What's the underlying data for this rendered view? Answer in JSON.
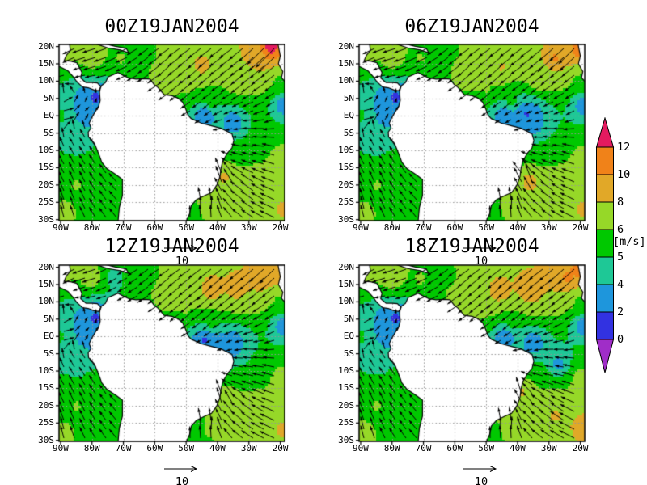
{
  "figure": {
    "background": "#FFFFFF"
  },
  "chart_data": {
    "type": "heatmap-quiver-map",
    "description": "2x2 grid of wind vector maps over South America and tropical Atlantic, wind speed shaded in m/s",
    "reference_vector": {
      "label": "10",
      "value": 10
    },
    "panels": [
      {
        "id": "00z",
        "title": "00Z19JAN2004",
        "wind_controls": [
          [
            -88,
            18.5,
            -5.5,
            -3
          ],
          [
            -80,
            17,
            -6.5,
            -2
          ],
          [
            -71,
            16.5,
            -5.5,
            -2.5
          ],
          [
            -62,
            17.5,
            -4.5,
            -3.5
          ],
          [
            -55,
            13.5,
            -5.5,
            -5
          ],
          [
            -45,
            14.5,
            -6.5,
            -6
          ],
          [
            -33,
            11,
            -5.5,
            -4.5
          ],
          [
            -27,
            17.5,
            -7,
            -6.5
          ],
          [
            -23,
            19.6,
            -9,
            -9.5
          ],
          [
            -20,
            10,
            -4.5,
            -3.5
          ],
          [
            -19,
            3,
            -2.5,
            -2
          ],
          [
            -50,
            7.5,
            -4.5,
            -4
          ],
          [
            -42,
            4,
            -4,
            -3.5
          ],
          [
            -44,
            0,
            -2,
            -1.5
          ],
          [
            -35,
            -2,
            -2.5,
            -1
          ],
          [
            -28,
            -6,
            -5,
            0.5
          ],
          [
            -20,
            -12,
            -6,
            2
          ],
          [
            -33,
            -12,
            -5.5,
            1.5
          ],
          [
            -42,
            -10,
            -4,
            2
          ],
          [
            -38,
            -18,
            -2.5,
            8
          ],
          [
            -30,
            -22,
            -6,
            4.5
          ],
          [
            -19,
            -27,
            -7.5,
            3.5
          ],
          [
            -43,
            -27,
            0.5,
            6
          ],
          [
            -53,
            -30,
            1.5,
            5
          ],
          [
            -90,
            0,
            5,
            1
          ],
          [
            -81,
            1,
            2,
            1.5
          ],
          [
            -79,
            5,
            0.5,
            1.5
          ],
          [
            -84,
            -7,
            -2.5,
            4
          ],
          [
            -78,
            -13,
            -3,
            4.5
          ],
          [
            -85,
            -20,
            -2.5,
            5.5
          ],
          [
            -89,
            -28,
            -1.5,
            6
          ]
        ]
      },
      {
        "id": "06z",
        "title": "06Z19JAN2004",
        "wind_controls": [
          [
            -88,
            18.5,
            -5.5,
            -3
          ],
          [
            -80,
            17,
            -6.5,
            -2
          ],
          [
            -71,
            16.5,
            -5.5,
            -2.5
          ],
          [
            -62,
            17.5,
            -4.5,
            -3.5
          ],
          [
            -55,
            13.5,
            -5.5,
            -5
          ],
          [
            -45,
            14,
            -6,
            -5.5
          ],
          [
            -33,
            11,
            -5.5,
            -4.5
          ],
          [
            -28,
            16.5,
            -7.5,
            -7
          ],
          [
            -21,
            19,
            -7.5,
            -7.5
          ],
          [
            -20,
            10,
            -4.5,
            -3.5
          ],
          [
            -19,
            3,
            -2.5,
            -2
          ],
          [
            -50,
            7.5,
            -4.5,
            -4
          ],
          [
            -42,
            4,
            -4,
            -3.5
          ],
          [
            -44,
            0,
            -2,
            -1.5
          ],
          [
            -37,
            0.5,
            -1.5,
            -1
          ],
          [
            -35,
            -2,
            -2.5,
            -1
          ],
          [
            -28,
            -6,
            -5,
            0.5
          ],
          [
            -20,
            -12,
            -6,
            2
          ],
          [
            -33,
            -12,
            -5.5,
            1.5
          ],
          [
            -42,
            -10,
            -4,
            2
          ],
          [
            -36,
            -19,
            -3,
            8.5
          ],
          [
            -30,
            -22,
            -6,
            4.5
          ],
          [
            -19,
            -27,
            -7.5,
            3.5
          ],
          [
            -43,
            -27,
            0.5,
            6
          ],
          [
            -53,
            -30,
            1.5,
            5
          ],
          [
            -90,
            0,
            5,
            1
          ],
          [
            -81,
            1,
            2,
            1.5
          ],
          [
            -79,
            5,
            0.5,
            1.5
          ],
          [
            -84,
            -7,
            -2.5,
            4
          ],
          [
            -78,
            -13,
            -3,
            4.5
          ],
          [
            -85,
            -20,
            -2.5,
            5.5
          ],
          [
            -89,
            -28,
            -1.5,
            6
          ]
        ]
      },
      {
        "id": "12z",
        "title": "12Z19JAN2004",
        "wind_controls": [
          [
            -88,
            18.5,
            -5.5,
            -3
          ],
          [
            -80,
            17,
            -6.5,
            -2
          ],
          [
            -73,
            17,
            -4,
            -2.5
          ],
          [
            -62,
            17.5,
            -4.5,
            -3.5
          ],
          [
            -55,
            13.5,
            -5.5,
            -5
          ],
          [
            -42,
            13.5,
            -7,
            -6.5
          ],
          [
            -34,
            14,
            -7,
            -6
          ],
          [
            -26,
            17,
            -7,
            -6.5
          ],
          [
            -21,
            19,
            -7,
            -7
          ],
          [
            -20,
            10,
            -4.5,
            -3.5
          ],
          [
            -19,
            3,
            -2.5,
            -2
          ],
          [
            -50,
            7.5,
            -4.5,
            -4
          ],
          [
            -42,
            4,
            -4,
            -3.5
          ],
          [
            -44,
            -1,
            -1.5,
            -1
          ],
          [
            -38,
            -4,
            -2,
            -0.5
          ],
          [
            -35,
            -2,
            -2.5,
            -1
          ],
          [
            -28,
            -6,
            -5,
            0.5
          ],
          [
            -20,
            -12,
            -6,
            2
          ],
          [
            -33,
            -12,
            -5.5,
            1.5
          ],
          [
            -42,
            -10,
            -4,
            2
          ],
          [
            -38,
            -18,
            -2,
            7.5
          ],
          [
            -30,
            -22,
            -6,
            4.5
          ],
          [
            -19,
            -27,
            -7.5,
            3.5
          ],
          [
            -43,
            -27,
            0.5,
            6
          ],
          [
            -53,
            -30,
            1.5,
            5
          ],
          [
            -90,
            0,
            5,
            1
          ],
          [
            -81,
            1,
            2,
            1.5
          ],
          [
            -79,
            5,
            0.5,
            1.5
          ],
          [
            -84,
            -7,
            -2.5,
            4
          ],
          [
            -78,
            -13,
            -3,
            4.5
          ],
          [
            -85,
            -20,
            -2.5,
            5.5
          ],
          [
            -89,
            -28,
            -1.5,
            6
          ]
        ]
      },
      {
        "id": "18z",
        "title": "18Z19JAN2004",
        "wind_controls": [
          [
            -88,
            18.5,
            -5.5,
            -3
          ],
          [
            -80,
            17,
            -6.5,
            -2
          ],
          [
            -71,
            16.5,
            -5.5,
            -2.5
          ],
          [
            -62,
            17.5,
            -4.5,
            -3.5
          ],
          [
            -55,
            13.5,
            -5.5,
            -5
          ],
          [
            -46,
            13,
            -7,
            -6.5
          ],
          [
            -36,
            13.5,
            -7.5,
            -6.5
          ],
          [
            -24,
            17,
            -7.5,
            -7
          ],
          [
            -20,
            19.5,
            -8,
            -7.5
          ],
          [
            -20,
            10,
            -4.5,
            -3.5
          ],
          [
            -19,
            3,
            -2.5,
            -2
          ],
          [
            -50,
            7.5,
            -4.5,
            -4
          ],
          [
            -42,
            4,
            -4,
            -3.5
          ],
          [
            -44,
            0,
            -2,
            -1.5
          ],
          [
            -35,
            -2,
            -2.5,
            -1
          ],
          [
            -27,
            -8,
            -3.5,
            0.5
          ],
          [
            -20,
            -12,
            -6,
            2
          ],
          [
            -33,
            -12,
            -5.5,
            1.5
          ],
          [
            -42,
            -10,
            -4,
            2
          ],
          [
            -39,
            -16,
            -2.5,
            8
          ],
          [
            -28,
            -23,
            -6.5,
            5
          ],
          [
            -19,
            -26,
            -8,
            4
          ],
          [
            -43,
            -27,
            0.5,
            6
          ],
          [
            -53,
            -30,
            1.5,
            5
          ],
          [
            -90,
            0,
            5,
            1
          ],
          [
            -81,
            1,
            2,
            1.5
          ],
          [
            -79,
            5,
            0.5,
            1.5
          ],
          [
            -84,
            -7,
            -2.5,
            4
          ],
          [
            -78,
            -13,
            -3,
            4.5
          ],
          [
            -85,
            -20,
            -2.5,
            5.5
          ],
          [
            -89,
            -28,
            -1.5,
            6
          ]
        ]
      }
    ],
    "axes": {
      "lat_ticks": [
        {
          "label": "20N",
          "deg": 20
        },
        {
          "label": "15N",
          "deg": 15
        },
        {
          "label": "10N",
          "deg": 10
        },
        {
          "label": "5N",
          "deg": 5
        },
        {
          "label": "EQ",
          "deg": 0
        },
        {
          "label": "5S",
          "deg": -5
        },
        {
          "label": "10S",
          "deg": -10
        },
        {
          "label": "15S",
          "deg": -15
        },
        {
          "label": "20S",
          "deg": -20
        },
        {
          "label": "25S",
          "deg": -25
        },
        {
          "label": "30S",
          "deg": -30
        }
      ],
      "lon_ticks": [
        {
          "label": "90W",
          "deg": -90
        },
        {
          "label": "80W",
          "deg": -80
        },
        {
          "label": "70W",
          "deg": -70
        },
        {
          "label": "60W",
          "deg": -60
        },
        {
          "label": "50W",
          "deg": -50
        },
        {
          "label": "40W",
          "deg": -40
        },
        {
          "label": "30W",
          "deg": -30
        },
        {
          "label": "20W",
          "deg": -20
        }
      ],
      "lon_range": [
        -90.5,
        -18.6
      ],
      "lat_range": [
        -30.3,
        20.6
      ],
      "grid": "dotted"
    },
    "colorbar": {
      "unit": "[m/s]",
      "levels": [
        0,
        2,
        4,
        5,
        6,
        8,
        10,
        12
      ],
      "labels": [
        "12",
        "10",
        "8",
        "6",
        "5",
        "4",
        "2",
        "0"
      ],
      "segment_colors_top_to_bottom": [
        "#F08219",
        "#E1A828",
        "#96D828",
        "#00C800",
        "#1EC896",
        "#1E96DC",
        "#3232E1"
      ],
      "over_color": "#E41A5F",
      "under_color": "#A02DC8"
    },
    "land_polygons": {
      "south_america": [
        [
          -77.2,
          8.6
        ],
        [
          -75.7,
          9.6
        ],
        [
          -74.9,
          11.2
        ],
        [
          -71.7,
          12.5
        ],
        [
          -70.1,
          11.7
        ],
        [
          -68.3,
          10.9
        ],
        [
          -66,
          10.6
        ],
        [
          -63.5,
          10.7
        ],
        [
          -61.5,
          10.6
        ],
        [
          -60.2,
          9.0
        ],
        [
          -59.0,
          8.2
        ],
        [
          -57.0,
          6.1
        ],
        [
          -54.5,
          5.8
        ],
        [
          -52.6,
          5.1
        ],
        [
          -51.1,
          3.9
        ],
        [
          -50.1,
          1.9
        ],
        [
          -49.4,
          0.2
        ],
        [
          -48.4,
          -0.8
        ],
        [
          -45.2,
          -2.1
        ],
        [
          -41.9,
          -2.9
        ],
        [
          -38.9,
          -3.6
        ],
        [
          -35.4,
          -5.2
        ],
        [
          -34.8,
          -7.1
        ],
        [
          -35.4,
          -9.3
        ],
        [
          -36.8,
          -10.7
        ],
        [
          -38.3,
          -13.0
        ],
        [
          -38.9,
          -15.2
        ],
        [
          -39.2,
          -17.5
        ],
        [
          -40.2,
          -20.0
        ],
        [
          -41.9,
          -22.2
        ],
        [
          -44.0,
          -23.0
        ],
        [
          -46.7,
          -24.2
        ],
        [
          -48.3,
          -25.8
        ],
        [
          -48.9,
          -28.3
        ],
        [
          -50.5,
          -31.5
        ],
        [
          -71.8,
          -31.5
        ],
        [
          -71.3,
          -26.5
        ],
        [
          -70.3,
          -23.0
        ],
        [
          -70.3,
          -18.4
        ],
        [
          -72.2,
          -17.1
        ],
        [
          -75.2,
          -15.3
        ],
        [
          -76.9,
          -13.4
        ],
        [
          -77.7,
          -11.4
        ],
        [
          -79.2,
          -8.0
        ],
        [
          -81.1,
          -6.1
        ],
        [
          -81.2,
          -4.7
        ],
        [
          -80.3,
          -3.5
        ],
        [
          -80.9,
          -2.1
        ],
        [
          -80.1,
          -0.6
        ],
        [
          -78.9,
          1.3
        ],
        [
          -77.9,
          2.7
        ],
        [
          -77.4,
          4.4
        ],
        [
          -77.6,
          6.8
        ]
      ],
      "central_america": [
        [
          -91,
          21
        ],
        [
          -87.2,
          21
        ],
        [
          -86.9,
          18.9
        ],
        [
          -88.2,
          17.4
        ],
        [
          -88.9,
          15.9
        ],
        [
          -86.8,
          15.8
        ],
        [
          -84.8,
          15.3
        ],
        [
          -83.2,
          12.5
        ],
        [
          -83.6,
          10.9
        ],
        [
          -81.9,
          9.6
        ],
        [
          -80.0,
          9.6
        ],
        [
          -78.3,
          9.5
        ],
        [
          -77.1,
          8.4
        ],
        [
          -77.9,
          7.2
        ],
        [
          -79.5,
          7.5
        ],
        [
          -81.2,
          8.1
        ],
        [
          -83.0,
          8.3
        ],
        [
          -84.9,
          9.9
        ],
        [
          -86.0,
          11.3
        ],
        [
          -87.7,
          13.0
        ],
        [
          -91,
          14.5
        ]
      ],
      "antilles": [
        [
          -79.5,
          21
        ],
        [
          -75,
          19.6
        ],
        [
          -71,
          19.0
        ],
        [
          -68.3,
          18.2
        ],
        [
          -69.1,
          19.5
        ],
        [
          -72.8,
          20.1
        ],
        [
          -76.8,
          21
        ]
      ],
      "africa": [
        [
          -20.8,
          21
        ],
        [
          -20.0,
          17.3
        ],
        [
          -20.6,
          15.0
        ],
        [
          -19.2,
          12.8
        ],
        [
          -19.6,
          11.0
        ],
        [
          -17.9,
          9.2
        ],
        [
          -16.8,
          7.0
        ],
        [
          -14.5,
          5.5
        ],
        [
          -12.5,
          21
        ]
      ]
    },
    "style": {
      "land_color": "#FFFFFF",
      "sea_background": "#FFFFFF",
      "grid_color": "#969696",
      "coast_color": "#000000",
      "arrow_color": "#000000",
      "frame_color": "#000000"
    }
  }
}
